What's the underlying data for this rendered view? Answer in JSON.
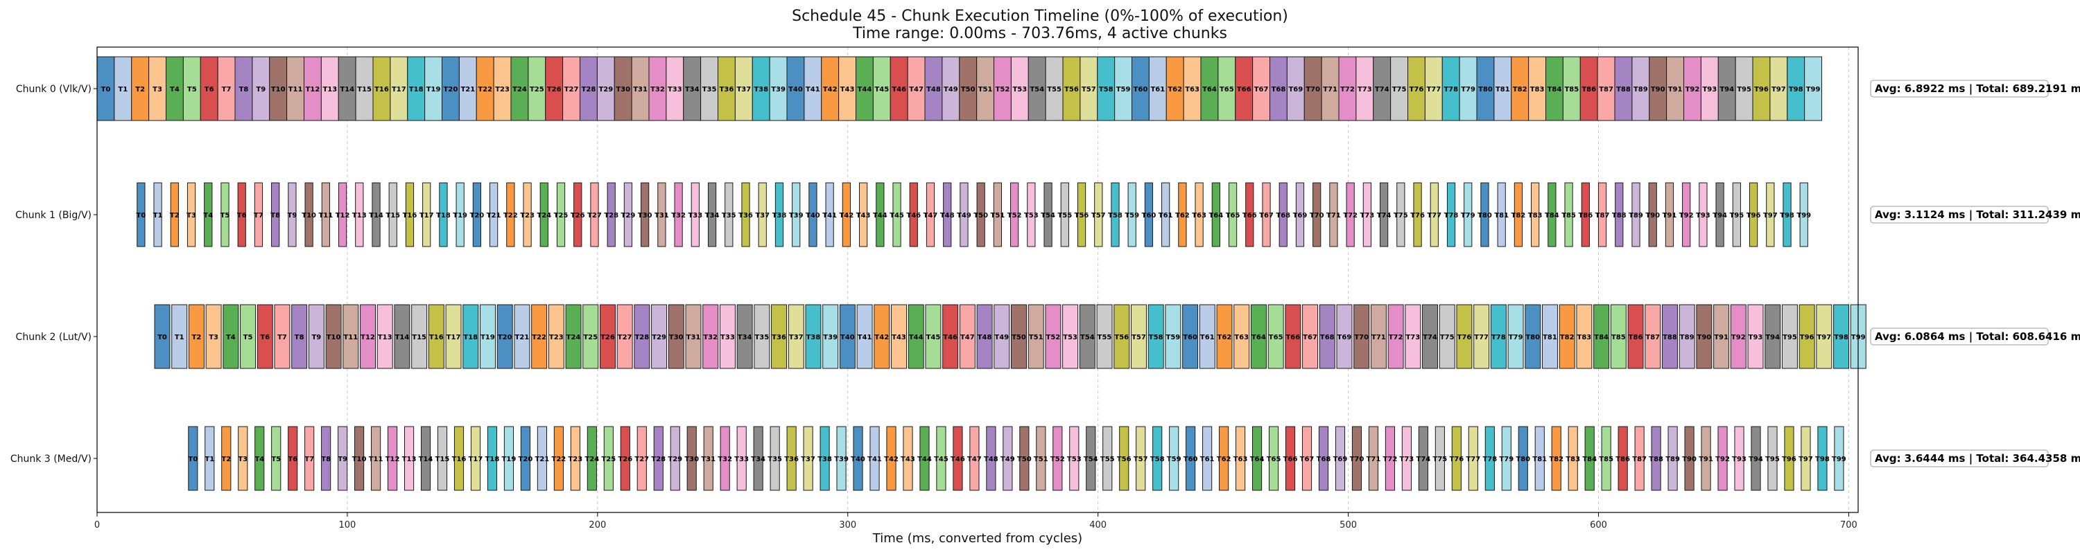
{
  "chart_data": {
    "type": "gantt",
    "title": "Schedule 45 - Chunk Execution Timeline (0%-100% of execution)",
    "subtitle": "Time range: 0.00ms - 703.76ms, 4 active chunks",
    "xlabel": "Time (ms, converted from cycles)",
    "xlim": [
      0,
      703.76
    ],
    "xticks": [
      0,
      100,
      200,
      300,
      400,
      500,
      600,
      700
    ],
    "grid": "x-dashed",
    "task_count": 100,
    "task_prefix": "T",
    "palette": [
      "#4c8fc3",
      "#b9cde9",
      "#f99941",
      "#fcc590",
      "#5aaf55",
      "#a6dd96",
      "#d94f4f",
      "#f9a7a7",
      "#a584c4",
      "#cbb6d9",
      "#9f7369",
      "#cfab9f",
      "#e48ec8",
      "#f6bfdc",
      "#8a8a8a",
      "#cbcbcb",
      "#c3c148",
      "#dfdf99",
      "#46bfcd",
      "#a8dfe7"
    ],
    "chunks": [
      {
        "label": "Chunk 0 (Vlk/V)",
        "start": 0.0,
        "avg": 6.8922,
        "gap": 0.0,
        "stats": "Avg: 6.8922 ms | Total: 689.2191 ms"
      },
      {
        "label": "Chunk 1 (Big/V)",
        "start": 16.0,
        "avg": 3.1124,
        "gap": 3.6,
        "stats": "Avg: 3.1124 ms | Total: 311.2439 ms"
      },
      {
        "label": "Chunk 2 (Lut/V)",
        "start": 23.0,
        "avg": 6.0864,
        "gap": 0.76,
        "stats": "Avg: 6.0864 ms | Total: 608.6416 ms"
      },
      {
        "label": "Chunk 3 (Med/V)",
        "start": 36.5,
        "avg": 3.6444,
        "gap": 3.0,
        "stats": "Avg: 3.6444 ms | Total: 364.4358 ms"
      }
    ]
  }
}
